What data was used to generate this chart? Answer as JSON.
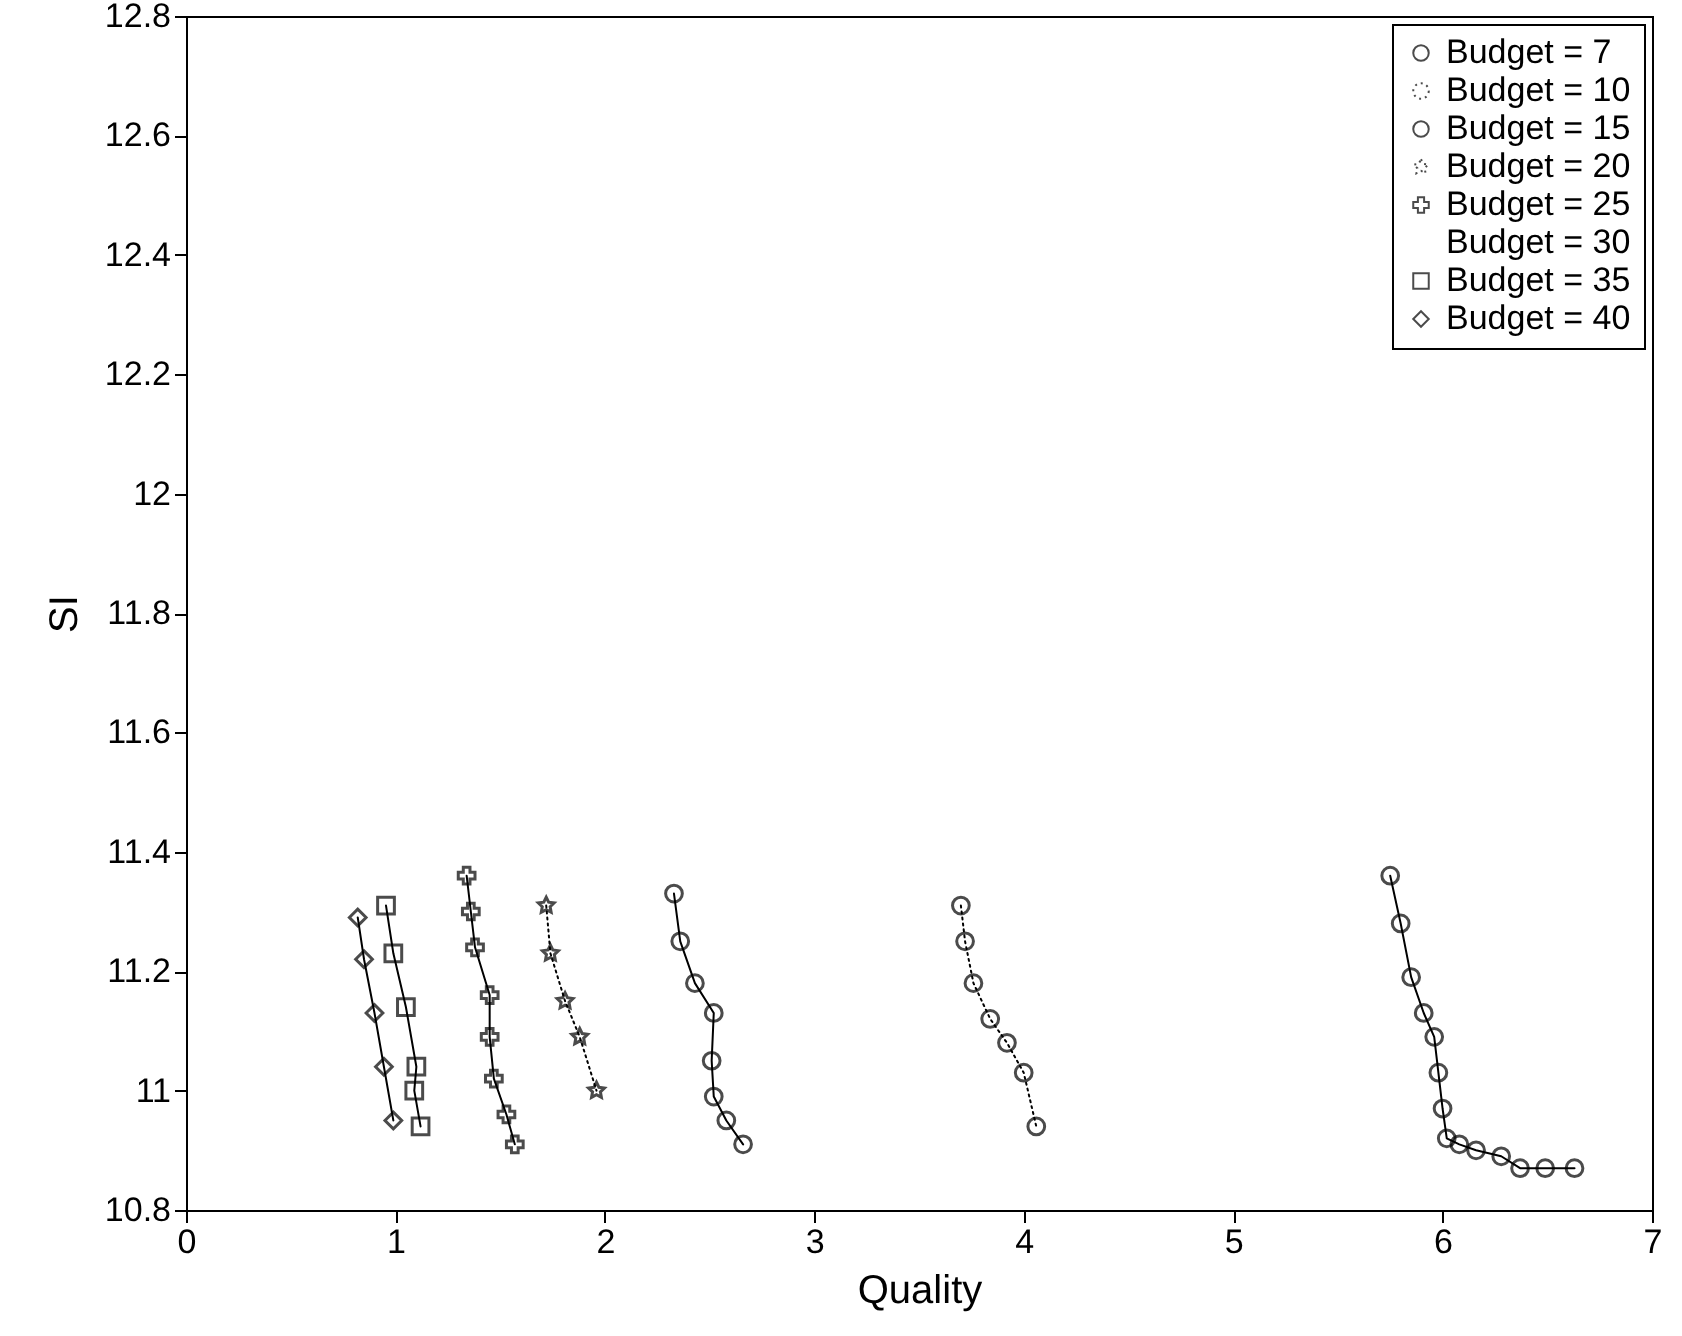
{
  "chart_data": {
    "type": "line",
    "xlabel": "Quality",
    "ylabel": "SI",
    "xlim": [
      0,
      7
    ],
    "xticks": [
      0,
      1,
      2,
      3,
      4,
      5,
      6,
      7
    ],
    "ylim": [
      10.8,
      12.8
    ],
    "yticks": [
      10.8,
      11,
      11.2,
      11.4,
      11.6,
      11.8,
      12,
      12.2,
      12.4,
      12.6,
      12.8
    ],
    "grid": false,
    "legend": "top right",
    "series": [
      {
        "name": "Budget = 7",
        "color": "#000000",
        "marker": "circle",
        "line_style": "solid",
        "x": [
          5.75,
          5.8,
          5.85,
          5.91,
          5.96,
          5.98,
          6.0,
          6.02,
          6.08,
          6.16,
          6.28,
          6.37,
          6.49,
          6.63
        ],
        "values": [
          11.36,
          11.28,
          11.19,
          11.13,
          11.09,
          11.03,
          10.97,
          10.92,
          10.91,
          10.9,
          10.89,
          10.87,
          10.87,
          10.87
        ]
      },
      {
        "name": "Budget = 10",
        "color": "#000000",
        "marker": "circle",
        "line_style": "dotted",
        "x": [
          3.7,
          3.72,
          3.76,
          3.84,
          3.92,
          4.0,
          4.06
        ],
        "values": [
          11.31,
          11.25,
          11.18,
          11.12,
          11.08,
          11.03,
          10.94
        ]
      },
      {
        "name": "Budget = 15",
        "color": "#000000",
        "marker": "circle",
        "line_style": "solid",
        "x": [
          2.33,
          2.36,
          2.43,
          2.52,
          2.51,
          2.52,
          2.58,
          2.66
        ],
        "values": [
          11.33,
          11.25,
          11.18,
          11.13,
          11.05,
          10.99,
          10.95,
          10.91
        ]
      },
      {
        "name": "Budget = 20",
        "color": "#000000",
        "marker": "star",
        "line_style": "dotted",
        "x": [
          1.72,
          1.74,
          1.81,
          1.88,
          1.96
        ],
        "values": [
          11.31,
          11.23,
          11.15,
          11.09,
          11.0
        ]
      },
      {
        "name": "Budget = 25",
        "color": "#000000",
        "marker": "cross",
        "line_style": "solid",
        "x": [
          1.34,
          1.36,
          1.38,
          1.45,
          1.45,
          1.47,
          1.53,
          1.57
        ],
        "values": [
          11.36,
          11.3,
          11.24,
          11.16,
          11.09,
          11.02,
          10.96,
          10.91
        ]
      },
      {
        "name": "Budget = 30",
        "marker": "none",
        "line_style": "solid"
      },
      {
        "name": "Budget = 35",
        "color": "#000000",
        "marker": "square",
        "line_style": "solid",
        "x": [
          0.955,
          0.99,
          1.05,
          1.1,
          1.09,
          1.12
        ],
        "values": [
          11.31,
          11.23,
          11.14,
          11.04,
          11.0,
          10.94
        ]
      },
      {
        "name": "Budget = 40",
        "color": "#000000",
        "marker": "diamond",
        "line_style": "solid",
        "x": [
          0.82,
          0.85,
          0.9,
          0.945,
          0.99
        ],
        "values": [
          11.29,
          11.22,
          11.13,
          11.04,
          10.95
        ]
      }
    ]
  }
}
